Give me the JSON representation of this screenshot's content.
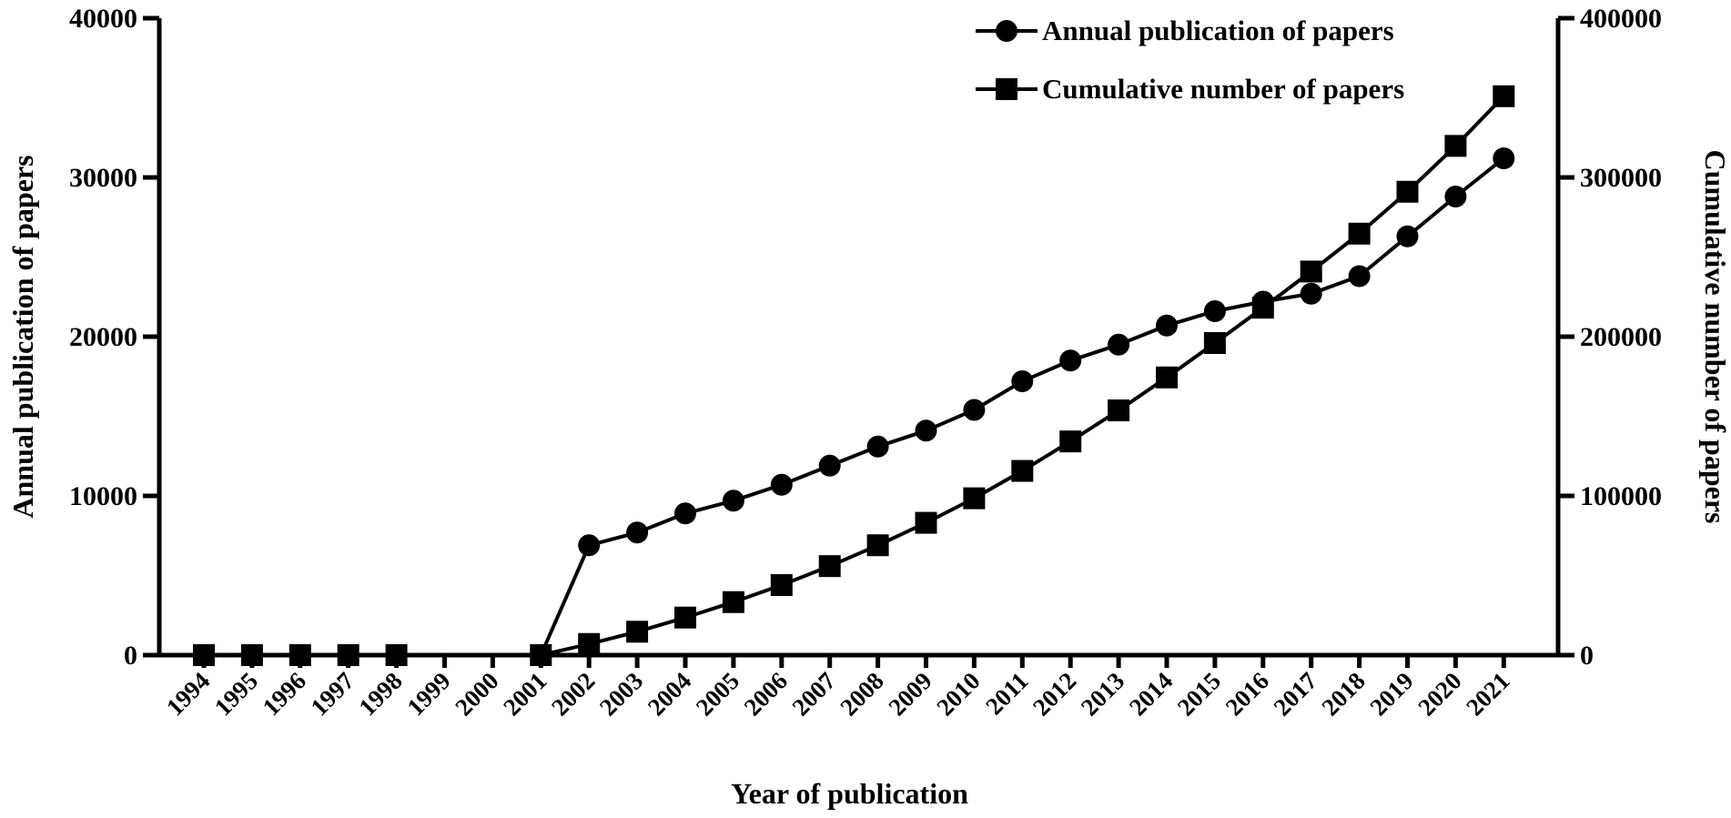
{
  "chart_data": {
    "type": "line",
    "title": "",
    "xlabel": "Year of publication",
    "ylabel_left": "Annual publication of papers",
    "ylabel_right": "Cumulative number of papers",
    "categories": [
      "1994",
      "1995",
      "1996",
      "1997",
      "1998",
      "1999",
      "2000",
      "2001",
      "2002",
      "2003",
      "2004",
      "2005",
      "2006",
      "2007",
      "2008",
      "2009",
      "2010",
      "2011",
      "2012",
      "2013",
      "2014",
      "2015",
      "2016",
      "2017",
      "2018",
      "2019",
      "2020",
      "2021"
    ],
    "ylim_left": [
      0,
      40000
    ],
    "ylim_right": [
      0,
      400000
    ],
    "yticks_left": [
      0,
      10000,
      20000,
      30000,
      40000
    ],
    "yticks_right": [
      0,
      100000,
      200000,
      300000,
      400000
    ],
    "yticks_left_labels": [
      "0",
      "10000",
      "20000",
      "30000",
      "40000"
    ],
    "yticks_right_labels": [
      "0",
      "100000",
      "200000",
      "300000",
      "400000"
    ],
    "legend_position": "top-right",
    "grid": false,
    "series": [
      {
        "name": "Annual publication of papers",
        "marker": "circle",
        "axis": "left",
        "values": [
          0,
          0,
          0,
          0,
          0,
          null,
          null,
          0,
          6900,
          7700,
          8900,
          9700,
          10700,
          11900,
          13100,
          14100,
          15400,
          17200,
          18500,
          19500,
          20700,
          21600,
          22200,
          22700,
          23800,
          26300,
          28800,
          31200
        ]
      },
      {
        "name": "Cumulative number of papers",
        "marker": "square",
        "axis": "right",
        "values": [
          0,
          0,
          0,
          0,
          0,
          null,
          null,
          0,
          7000,
          14700,
          23600,
          33300,
          44000,
          55900,
          69000,
          83100,
          98500,
          115700,
          134200,
          153700,
          174400,
          196000,
          218200,
          240900,
          264700,
          291000,
          319800,
          351000
        ]
      }
    ],
    "line_color": "#000000"
  }
}
